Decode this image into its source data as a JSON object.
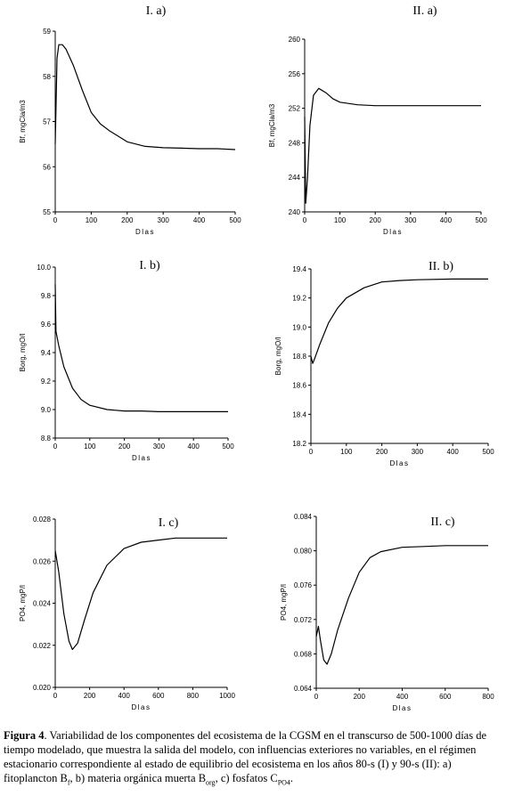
{
  "chart_data": [
    {
      "id": "Ia",
      "type": "line",
      "title": "I. a)",
      "xlabel": "Dlas",
      "ylabel": "Bf, mgCla/m3",
      "xlim": [
        0,
        500
      ],
      "ylim": [
        55,
        59
      ],
      "xticks": [
        0,
        100,
        200,
        300,
        400,
        500
      ],
      "yticks": [
        55,
        56,
        57,
        58,
        59
      ],
      "series": [
        {
          "x": [
            0,
            5,
            10,
            20,
            30,
            50,
            75,
            100,
            125,
            150,
            200,
            250,
            300,
            350,
            400,
            450,
            500
          ],
          "y": [
            56.5,
            58.4,
            58.7,
            58.7,
            58.6,
            58.25,
            57.7,
            57.2,
            56.95,
            56.8,
            56.55,
            56.45,
            56.42,
            56.41,
            56.4,
            56.4,
            56.38
          ]
        }
      ]
    },
    {
      "id": "IIa",
      "type": "line",
      "title": "II. a)",
      "xlabel": "Dlas",
      "ylabel": "Bf, mgCla/m3",
      "xlim": [
        0,
        500
      ],
      "ylim": [
        240,
        260
      ],
      "xticks": [
        0,
        100,
        200,
        300,
        400,
        500
      ],
      "yticks": [
        240,
        244,
        248,
        252,
        256,
        260
      ],
      "series": [
        {
          "x": [
            0,
            3,
            8,
            15,
            25,
            40,
            60,
            80,
            100,
            150,
            200,
            300,
            400,
            500
          ],
          "y": [
            251,
            241,
            244,
            250,
            253.5,
            254.3,
            253.8,
            253.1,
            252.7,
            252.4,
            252.3,
            252.3,
            252.3,
            252.3
          ]
        }
      ]
    },
    {
      "id": "Ib",
      "type": "line",
      "title": "I. b)",
      "xlabel": "Dlas",
      "ylabel": "Borg, mgO/l",
      "xlim": [
        0,
        500
      ],
      "ylim": [
        8.8,
        10.0
      ],
      "xticks": [
        0,
        100,
        200,
        300,
        400,
        500
      ],
      "yticks": [
        8.8,
        9.0,
        9.2,
        9.4,
        9.6,
        9.8,
        10.0
      ],
      "series": [
        {
          "x": [
            0,
            2,
            10,
            25,
            50,
            75,
            100,
            150,
            200,
            250,
            300,
            400,
            500
          ],
          "y": [
            9.88,
            9.55,
            9.45,
            9.3,
            9.15,
            9.07,
            9.03,
            9.0,
            8.99,
            8.99,
            8.985,
            8.985,
            8.985
          ]
        }
      ]
    },
    {
      "id": "IIb",
      "type": "line",
      "title": "II. b)",
      "xlabel": "Dlas",
      "ylabel": "Borg, mgO/l",
      "xlim": [
        0,
        500
      ],
      "ylim": [
        18.2,
        19.4
      ],
      "xticks": [
        0,
        100,
        200,
        300,
        400,
        500
      ],
      "yticks": [
        18.2,
        18.4,
        18.6,
        18.8,
        19.0,
        19.2,
        19.4
      ],
      "series": [
        {
          "x": [
            0,
            5,
            10,
            25,
            50,
            75,
            100,
            150,
            200,
            250,
            300,
            400,
            500
          ],
          "y": [
            18.8,
            18.75,
            18.78,
            18.88,
            19.03,
            19.13,
            19.2,
            19.27,
            19.31,
            19.32,
            19.325,
            19.33,
            19.33
          ]
        }
      ]
    },
    {
      "id": "Ic",
      "type": "line",
      "title": "I. c)",
      "xlabel": "Dlas",
      "ylabel": "PO4, mgP/l",
      "xlim": [
        0,
        1000
      ],
      "ylim": [
        0.02,
        0.028
      ],
      "xticks": [
        0,
        200,
        400,
        600,
        800,
        1000
      ],
      "yticks": [
        0.02,
        0.022,
        0.024,
        0.026,
        0.028
      ],
      "series": [
        {
          "x": [
            0,
            20,
            50,
            80,
            100,
            130,
            170,
            220,
            300,
            400,
            500,
            600,
            700,
            800,
            900,
            1000
          ],
          "y": [
            0.0265,
            0.0255,
            0.0235,
            0.0222,
            0.0218,
            0.0221,
            0.0232,
            0.0245,
            0.0258,
            0.0266,
            0.0269,
            0.027,
            0.0271,
            0.0271,
            0.0271,
            0.0271
          ]
        }
      ]
    },
    {
      "id": "IIc",
      "type": "line",
      "title": "II. c)",
      "xlabel": "Dlas",
      "ylabel": "PO4, mgP/l",
      "xlim": [
        0,
        800
      ],
      "ylim": [
        0.064,
        0.084
      ],
      "xticks": [
        0,
        200,
        400,
        600,
        800
      ],
      "yticks": [
        0.064,
        0.068,
        0.072,
        0.076,
        0.08,
        0.084
      ],
      "series": [
        {
          "x": [
            0,
            10,
            20,
            35,
            50,
            70,
            100,
            150,
            200,
            250,
            300,
            400,
            500,
            600,
            700,
            800
          ],
          "y": [
            0.07,
            0.0712,
            0.0695,
            0.0673,
            0.0668,
            0.068,
            0.0708,
            0.0745,
            0.0775,
            0.0792,
            0.0799,
            0.0804,
            0.0805,
            0.0806,
            0.0806,
            0.0806
          ]
        }
      ]
    }
  ],
  "caption": {
    "label": "Figura 4",
    "text_1": ". Variabilidad de los componentes del ecosistema de la CGSM en el transcurso de 500-1000 días de tiempo modelado, que muestra la salida del modelo, con influencias exteriores no variables, en el régimen estacionario correspondiente al estado de equilibrio del ecosistema en los años 80-s (I) y 90-s (II): a) fitoplancton B",
    "sub_f": "f",
    "text_2": ", b) materia orgánica muerta B",
    "sub_org": "org",
    "text_3": ",   c) fosfatos C",
    "sub_po4": "PO4",
    "text_4": "."
  }
}
